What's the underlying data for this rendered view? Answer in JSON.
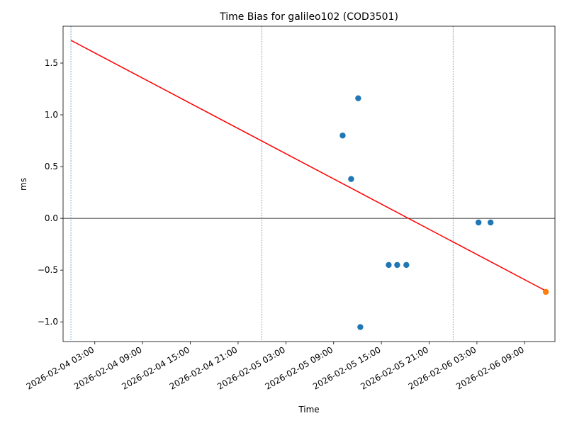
{
  "chart_data": {
    "type": "scatter",
    "title": "Time Bias for galileo102 (COD3501)",
    "x_label": "Time",
    "y_label": "ms",
    "xlim": [
      "2026-02-03 23:01",
      "2026-02-06 12:48"
    ],
    "xticks": [
      "2026-02-04 03:00",
      "2026-02-04 09:00",
      "2026-02-04 15:00",
      "2026-02-04 21:00",
      "2026-02-05 03:00",
      "2026-02-05 09:00",
      "2026-02-05 15:00",
      "2026-02-05 21:00",
      "2026-02-06 03:00",
      "2026-02-06 09:00"
    ],
    "ylim": [
      -1.19,
      1.856
    ],
    "yticks": [
      {
        "value": -1.0,
        "label": "−1.0"
      },
      {
        "value": -0.5,
        "label": "−0.5"
      },
      {
        "value": 0.0,
        "label": "0.0"
      },
      {
        "value": 0.5,
        "label": "0.5"
      },
      {
        "value": 1.0,
        "label": "1.0"
      },
      {
        "value": 1.5,
        "label": "1.5"
      }
    ],
    "reference_line": 0,
    "vlines": [
      "2026-02-04 00:00",
      "2026-02-05 00:00",
      "2026-02-06 00:00"
    ],
    "series": [
      {
        "kind": "scatter",
        "color": "#1f77b4",
        "x": [
          "2026-02-05 10:08",
          "2026-02-05 11:12",
          "2026-02-05 12:05",
          "2026-02-05 12:21",
          "2026-02-05 15:55",
          "2026-02-05 16:59",
          "2026-02-05 18:08",
          "2026-02-06 03:12",
          "2026-02-06 04:43"
        ],
        "values": [
          0.8,
          0.38,
          1.16,
          -1.05,
          -0.45,
          -0.45,
          -0.45,
          -0.04,
          -0.04
        ]
      },
      {
        "kind": "scatter",
        "color": "#ff7f0e",
        "x": [
          "2026-02-06 11:39"
        ],
        "values": [
          -0.71
        ]
      },
      {
        "kind": "line",
        "color": "#ff0000",
        "x": [
          "2026-02-04 00:00",
          "2026-02-06 11:39"
        ],
        "values": [
          1.72,
          -0.7
        ]
      }
    ]
  }
}
